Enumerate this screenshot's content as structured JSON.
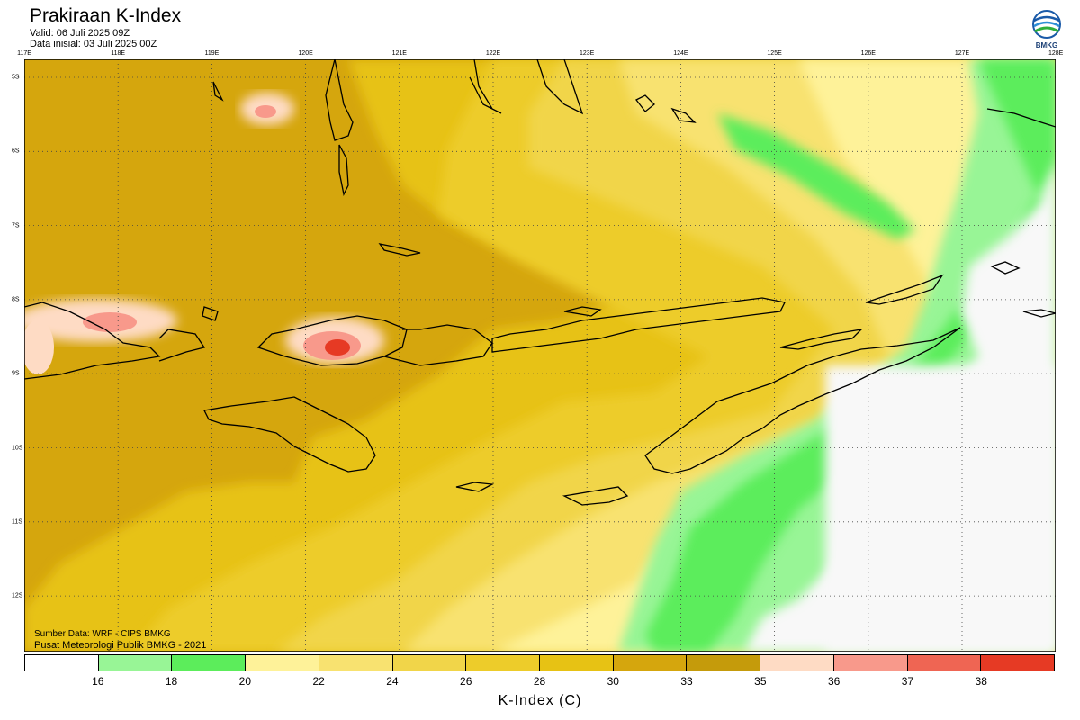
{
  "header": {
    "title": "Prakiraan K-Index",
    "valid": "Valid: 06 Juli 2025 09Z",
    "init": "Data inisial: 03 Juli 2025 00Z"
  },
  "logo": {
    "text": "BMKG",
    "icon": "bmkg-logo-icon"
  },
  "map": {
    "longitude_labels": [
      "117E",
      "118E",
      "119E",
      "120E",
      "121E",
      "122E",
      "123E",
      "124E",
      "125E",
      "126E",
      "127E",
      "128E"
    ],
    "latitude_labels": [
      "5S",
      "6S",
      "7S",
      "8S",
      "9S",
      "10S",
      "11S",
      "12S"
    ],
    "region_lon_range": [
      117,
      128
    ],
    "region_lat_range": [
      -4.75,
      -12.75
    ]
  },
  "footer": {
    "source": "Sumber Data: WRF - CIPS BMKG",
    "publisher": "Pusat Meteorologi Publik BMKG - 2021"
  },
  "legend": {
    "title": "K-Index (C)",
    "breaks": [
      "16",
      "18",
      "20",
      "22",
      "24",
      "26",
      "28",
      "30",
      "33",
      "35",
      "36",
      "37",
      "38"
    ],
    "colors": [
      "#ffffff",
      "#98f596",
      "#5ced5b",
      "#fef299",
      "#f8e270",
      "#f1d549",
      "#edcc2a",
      "#e7c214",
      "#d5a60d",
      "#c59b0b",
      "#fedbc4",
      "#f8998b",
      "#ef6553",
      "#e63a24"
    ]
  }
}
